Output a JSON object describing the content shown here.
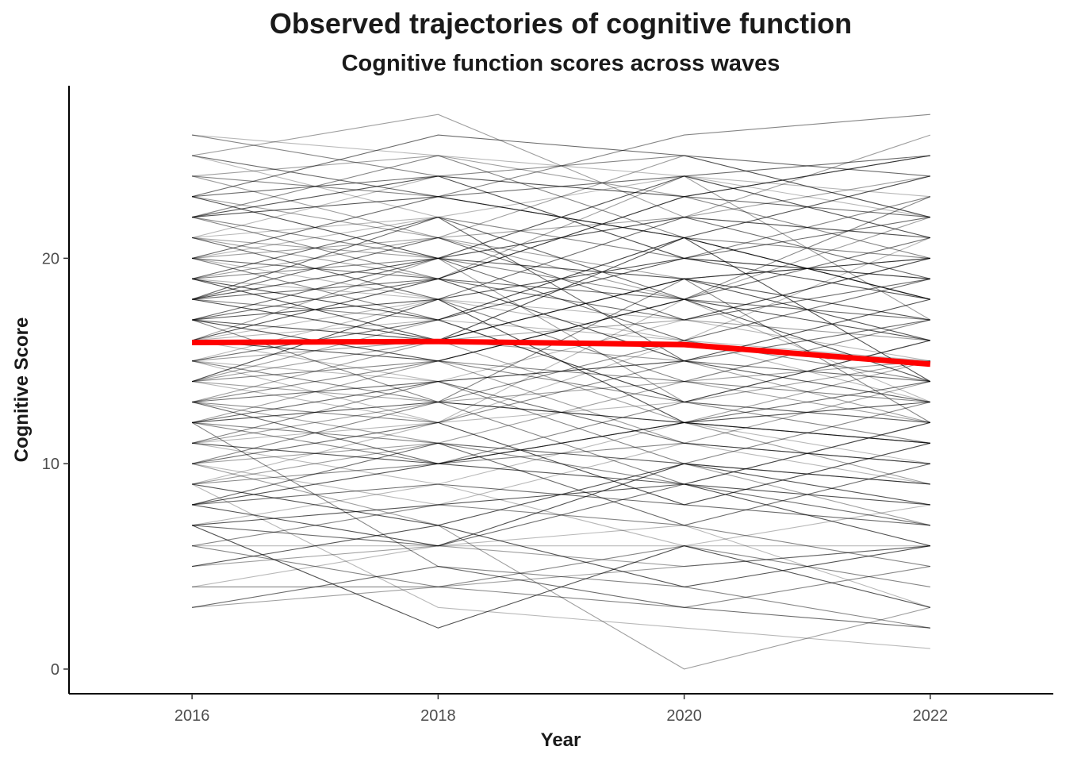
{
  "chart_data": {
    "type": "line",
    "title": "Observed trajectories of cognitive function",
    "subtitle": "Cognitive function scores across waves",
    "xlabel": "Year",
    "ylabel": "Cognitive Score",
    "x": [
      2016,
      2018,
      2020,
      2022
    ],
    "xlim": [
      2015,
      2023
    ],
    "ylim": [
      -1.2,
      28.4
    ],
    "x_ticks": [
      2016,
      2018,
      2020,
      2022
    ],
    "y_ticks": [
      0,
      10,
      20
    ],
    "grid": false,
    "legend": "none",
    "observed_score_range": [
      0,
      27
    ],
    "mean_trajectory": {
      "color": "#ff0000",
      "values": [
        15.9,
        15.95,
        15.8,
        14.85
      ]
    },
    "individual_trajectories": {
      "color": "#000000",
      "values": [
        [
          26,
          25,
          24,
          23
        ],
        [
          25,
          27,
          22,
          26
        ],
        [
          24,
          23,
          26,
          27
        ],
        [
          23,
          26,
          25,
          24
        ],
        [
          22,
          24,
          23,
          25
        ],
        [
          21,
          22,
          24,
          22
        ],
        [
          20,
          21,
          19,
          20
        ],
        [
          19,
          20,
          22,
          21
        ],
        [
          18,
          19,
          18,
          17
        ],
        [
          17,
          18,
          20,
          19
        ],
        [
          16,
          17,
          16,
          15
        ],
        [
          15,
          16,
          17,
          16
        ],
        [
          14,
          15,
          14,
          13
        ],
        [
          13,
          14,
          15,
          14
        ],
        [
          12,
          13,
          12,
          11
        ],
        [
          11,
          12,
          13,
          12
        ],
        [
          10,
          11,
          10,
          9
        ],
        [
          9,
          10,
          11,
          10
        ],
        [
          8,
          9,
          8,
          7
        ],
        [
          7,
          8,
          9,
          8
        ],
        [
          6,
          6,
          6,
          6
        ],
        [
          5,
          6,
          5,
          6
        ],
        [
          4,
          4,
          6,
          4
        ],
        [
          3,
          5,
          3,
          2
        ],
        [
          7,
          2,
          6,
          3
        ],
        [
          9,
          3,
          2,
          1
        ],
        [
          10,
          7,
          0,
          3
        ],
        [
          12,
          5,
          4,
          2
        ],
        [
          20,
          23,
          21,
          18
        ],
        [
          18,
          16,
          19,
          20
        ],
        [
          16,
          14,
          17,
          15
        ],
        [
          14,
          17,
          13,
          16
        ],
        [
          22,
          19,
          23,
          20
        ],
        [
          19,
          22,
          18,
          21
        ],
        [
          17,
          15,
          18,
          14
        ],
        [
          15,
          18,
          14,
          17
        ],
        [
          13,
          11,
          14,
          12
        ],
        [
          11,
          14,
          10,
          13
        ],
        [
          21,
          18,
          22,
          19
        ],
        [
          23,
          20,
          24,
          21
        ],
        [
          25,
          22,
          20,
          23
        ],
        [
          24,
          21,
          25,
          22
        ],
        [
          20,
          17,
          21,
          18
        ],
        [
          18,
          21,
          17,
          19
        ],
        [
          16,
          19,
          15,
          18
        ],
        [
          14,
          12,
          16,
          13
        ],
        [
          12,
          15,
          11,
          14
        ],
        [
          10,
          13,
          9,
          12
        ],
        [
          8,
          11,
          7,
          10
        ],
        [
          9,
          7,
          10,
          8
        ],
        [
          11,
          9,
          12,
          10
        ],
        [
          13,
          16,
          12,
          15
        ],
        [
          15,
          13,
          16,
          14
        ],
        [
          17,
          20,
          16,
          19
        ],
        [
          19,
          17,
          20,
          18
        ],
        [
          21,
          24,
          20,
          23
        ],
        [
          23,
          21,
          22,
          24
        ],
        [
          22,
          25,
          21,
          20
        ],
        [
          20,
          19,
          23,
          22
        ],
        [
          18,
          20,
          19,
          16
        ],
        [
          16,
          18,
          14,
          17
        ],
        [
          14,
          16,
          15,
          12
        ],
        [
          12,
          10,
          13,
          11
        ],
        [
          10,
          12,
          8,
          11
        ],
        [
          8,
          10,
          9,
          6
        ],
        [
          7,
          9,
          6,
          8
        ],
        [
          11,
          13,
          12,
          9
        ],
        [
          13,
          12,
          15,
          13
        ],
        [
          15,
          17,
          13,
          16
        ],
        [
          17,
          16,
          19,
          17
        ],
        [
          19,
          18,
          17,
          20
        ],
        [
          21,
          20,
          22,
          21
        ],
        [
          6,
          8,
          7,
          5
        ],
        [
          7,
          6,
          9,
          7
        ],
        [
          8,
          6,
          10,
          9
        ],
        [
          9,
          12,
          8,
          11
        ],
        [
          24,
          25,
          23,
          25
        ],
        [
          26,
          24,
          25,
          22
        ],
        [
          25,
          23,
          24,
          25
        ],
        [
          22,
          23,
          21,
          24
        ],
        [
          20,
          22,
          20,
          19
        ],
        [
          19,
          21,
          18,
          22
        ],
        [
          18,
          17,
          21,
          18
        ],
        [
          17,
          19,
          17,
          20
        ],
        [
          16,
          15,
          18,
          16
        ],
        [
          15,
          14,
          15,
          13
        ],
        [
          14,
          13,
          14,
          15
        ],
        [
          13,
          15,
          13,
          12
        ],
        [
          12,
          14,
          11,
          10
        ],
        [
          11,
          10,
          12,
          13
        ],
        [
          10,
          8,
          11,
          9
        ],
        [
          9,
          11,
          10,
          7
        ],
        [
          12,
          11,
          9,
          12
        ],
        [
          13,
          10,
          12,
          14
        ],
        [
          14,
          18,
          12,
          11
        ],
        [
          15,
          12,
          18,
          13
        ],
        [
          16,
          20,
          13,
          15
        ],
        [
          17,
          13,
          19,
          12
        ],
        [
          18,
          22,
          15,
          17
        ],
        [
          19,
          16,
          21,
          14
        ],
        [
          20,
          18,
          16,
          21
        ],
        [
          21,
          19,
          24,
          17
        ],
        [
          22,
          20,
          18,
          23
        ],
        [
          23,
          24,
          20,
          22
        ],
        [
          5,
          7,
          4,
          6
        ],
        [
          4,
          6,
          7,
          3
        ],
        [
          3,
          4,
          5,
          6
        ],
        [
          6,
          4,
          3,
          5
        ]
      ]
    }
  }
}
